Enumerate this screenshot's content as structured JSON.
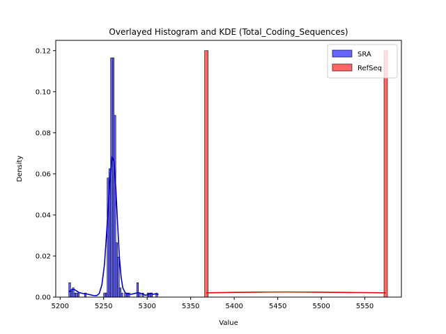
{
  "chart_data": {
    "type": "bar",
    "title": "Overlayed Histogram and KDE (Total_Coding_Sequences)",
    "xlabel": "Value",
    "ylabel": "Density",
    "xlim": [
      5195,
      5592
    ],
    "ylim": [
      0,
      0.125
    ],
    "xticks": [
      5200,
      5250,
      5300,
      5350,
      5400,
      5450,
      5500,
      5550
    ],
    "yticks": [
      0.0,
      0.02,
      0.04,
      0.06,
      0.08,
      0.1,
      0.12
    ],
    "grid": false,
    "legend_position": "top-right",
    "series": [
      {
        "name": "SRA",
        "color": "#0000ff",
        "kde_color": "#0000cc",
        "bin_width": 2,
        "bars": [
          {
            "x": 5211,
            "h": 0.007
          },
          {
            "x": 5213,
            "h": 0.003
          },
          {
            "x": 5215,
            "h": 0.0045
          },
          {
            "x": 5217,
            "h": 0.002
          },
          {
            "x": 5219,
            "h": 0.002
          },
          {
            "x": 5221,
            "h": 0.002
          },
          {
            "x": 5229,
            "h": 0.002
          },
          {
            "x": 5251,
            "h": 0.002
          },
          {
            "x": 5253,
            "h": 0.002
          },
          {
            "x": 5255,
            "h": 0.058
          },
          {
            "x": 5257,
            "h": 0.0625
          },
          {
            "x": 5259,
            "h": 0.1165
          },
          {
            "x": 5261,
            "h": 0.1165
          },
          {
            "x": 5263,
            "h": 0.0885
          },
          {
            "x": 5265,
            "h": 0.0265
          },
          {
            "x": 5267,
            "h": 0.0195
          },
          {
            "x": 5269,
            "h": 0.0045
          },
          {
            "x": 5271,
            "h": 0.002
          },
          {
            "x": 5275,
            "h": 0.002
          },
          {
            "x": 5277,
            "h": 0.002
          },
          {
            "x": 5279,
            "h": 0.002
          },
          {
            "x": 5289,
            "h": 0.007
          },
          {
            "x": 5291,
            "h": 0.002
          },
          {
            "x": 5295,
            "h": 0.002
          },
          {
            "x": 5301,
            "h": 0.002
          },
          {
            "x": 5303,
            "h": 0.002
          },
          {
            "x": 5305,
            "h": 0.002
          },
          {
            "x": 5311,
            "h": 0.002
          }
        ],
        "kde": [
          [
            5210,
            0.0025
          ],
          [
            5213,
            0.0036
          ],
          [
            5216,
            0.0038
          ],
          [
            5219,
            0.003
          ],
          [
            5222,
            0.0022
          ],
          [
            5226,
            0.0018
          ],
          [
            5230,
            0.0016
          ],
          [
            5234,
            0.0012
          ],
          [
            5238,
            0.0008
          ],
          [
            5242,
            0.0007
          ],
          [
            5245,
            0.0018
          ],
          [
            5248,
            0.006
          ],
          [
            5251,
            0.016
          ],
          [
            5254,
            0.035
          ],
          [
            5257,
            0.056
          ],
          [
            5259.5,
            0.0685
          ],
          [
            5262,
            0.066
          ],
          [
            5264,
            0.053
          ],
          [
            5266,
            0.036
          ],
          [
            5268,
            0.02
          ],
          [
            5270,
            0.01
          ],
          [
            5272,
            0.0045
          ],
          [
            5275,
            0.002
          ],
          [
            5278,
            0.0016
          ],
          [
            5282,
            0.0014
          ],
          [
            5286,
            0.0018
          ],
          [
            5290,
            0.0022
          ],
          [
            5294,
            0.0016
          ],
          [
            5298,
            0.0009
          ],
          [
            5301,
            0.0012
          ],
          [
            5304,
            0.0019
          ],
          [
            5307,
            0.0014
          ],
          [
            5310,
            0.0016
          ],
          [
            5313,
            0.0012
          ]
        ]
      },
      {
        "name": "RefSeq",
        "color": "#ff0000",
        "kde_color": "#e00000",
        "bin_width": 4,
        "bars": [
          {
            "x": 5368,
            "h": 0.12
          },
          {
            "x": 5574,
            "h": 0.12
          }
        ],
        "kde": [
          [
            5368,
            0.0021
          ],
          [
            5400,
            0.0023
          ],
          [
            5430,
            0.00245
          ],
          [
            5460,
            0.0025
          ],
          [
            5490,
            0.00245
          ],
          [
            5520,
            0.0023
          ],
          [
            5550,
            0.0022
          ],
          [
            5574,
            0.0021
          ]
        ]
      }
    ]
  }
}
